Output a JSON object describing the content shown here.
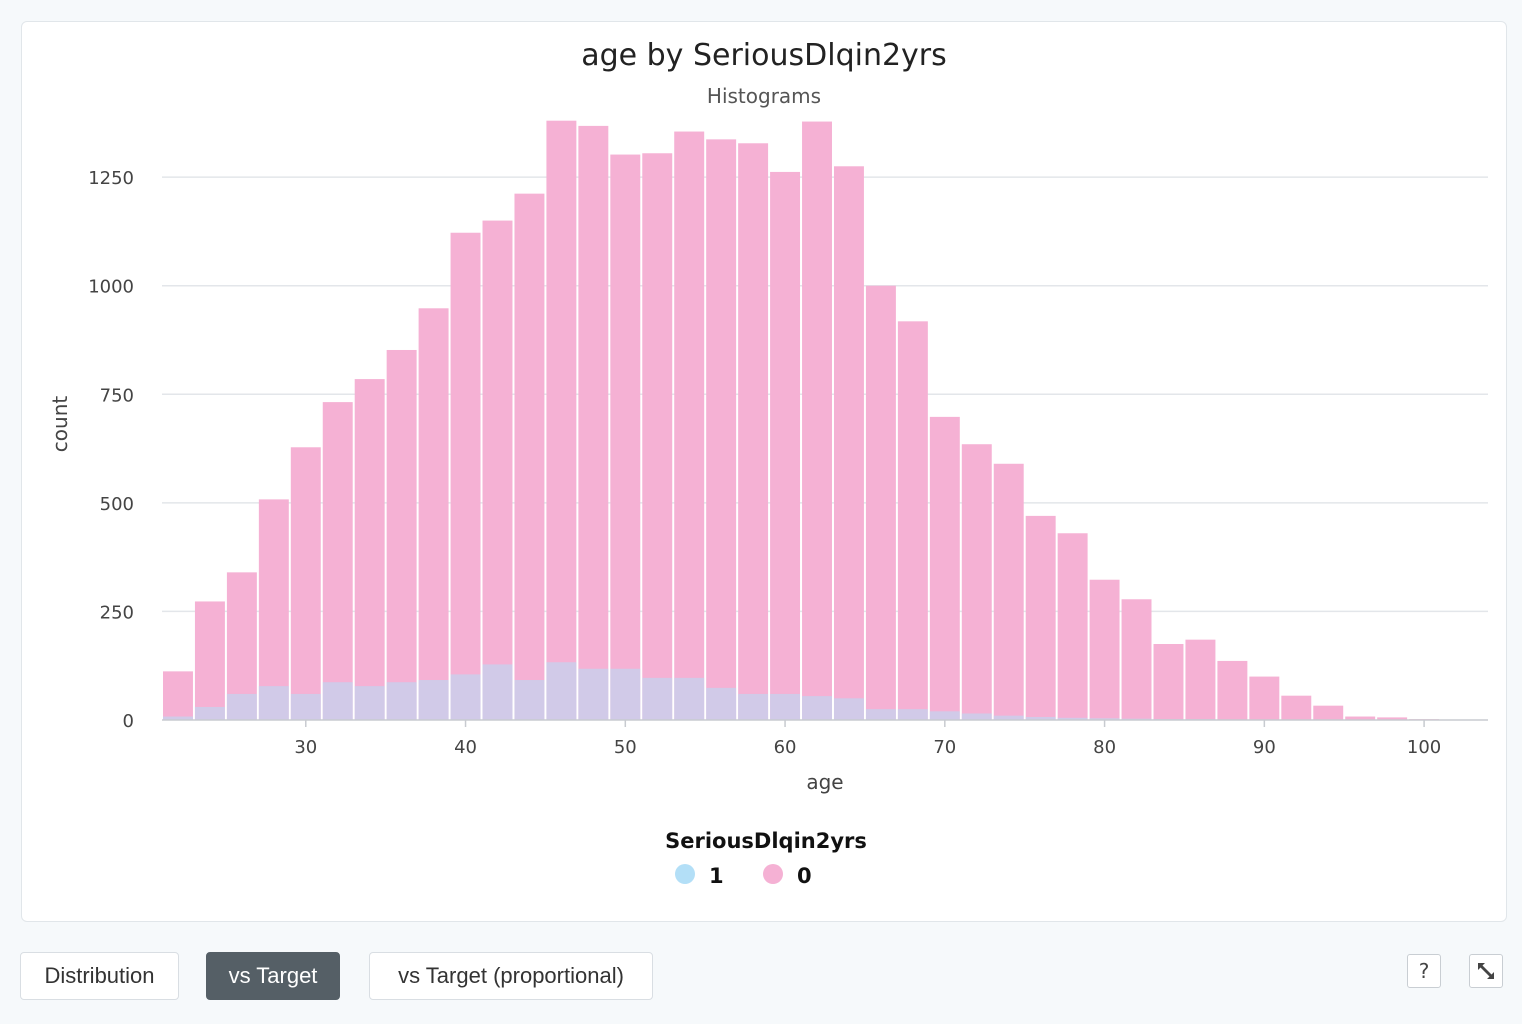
{
  "chart_data": {
    "type": "bar",
    "title": "age by SeriousDlqin2yrs",
    "subtitle": "Histograms",
    "xlabel": "age",
    "ylabel": "count",
    "xlim": [
      21,
      104
    ],
    "ylim": [
      0,
      1400
    ],
    "x_ticks": [
      30,
      40,
      50,
      60,
      70,
      80,
      90,
      100
    ],
    "y_ticks": [
      0,
      250,
      500,
      750,
      1000,
      1250
    ],
    "grid": true,
    "legend_title": "SeriousDlqin2yrs",
    "legend_position": "bottom-center",
    "bin_width": 2,
    "bin_starts": [
      21,
      23,
      25,
      27,
      29,
      31,
      33,
      35,
      37,
      39,
      41,
      43,
      45,
      47,
      49,
      51,
      53,
      55,
      57,
      59,
      61,
      63,
      65,
      67,
      69,
      71,
      73,
      75,
      77,
      79,
      81,
      83,
      85,
      87,
      89,
      91,
      93,
      95,
      97,
      99,
      101
    ],
    "series": [
      {
        "name": "1",
        "color": "#b3dff7",
        "values": [
          8,
          30,
          60,
          78,
          60,
          87,
          78,
          87,
          92,
          105,
          128,
          92,
          133,
          118,
          118,
          97,
          97,
          74,
          60,
          60,
          55,
          50,
          25,
          25,
          20,
          15,
          10,
          7,
          5,
          4,
          3,
          2,
          2,
          1,
          1,
          0,
          0,
          0,
          0,
          0,
          0
        ]
      },
      {
        "name": "0",
        "color": "#f5b1d4",
        "values": [
          112,
          273,
          340,
          508,
          628,
          732,
          785,
          852,
          948,
          1122,
          1150,
          1212,
          1380,
          1368,
          1302,
          1305,
          1355,
          1337,
          1328,
          1262,
          1378,
          1275,
          1000,
          918,
          698,
          635,
          590,
          470,
          430,
          323,
          278,
          175,
          185,
          136,
          100,
          56,
          33,
          8,
          6,
          2,
          1
        ]
      }
    ]
  },
  "controls": {
    "tabs": [
      {
        "label": "Distribution"
      },
      {
        "label": "vs Target"
      },
      {
        "label": "vs Target (proportional)"
      }
    ],
    "help_label": "?",
    "expand_icon": "expand-icon"
  }
}
